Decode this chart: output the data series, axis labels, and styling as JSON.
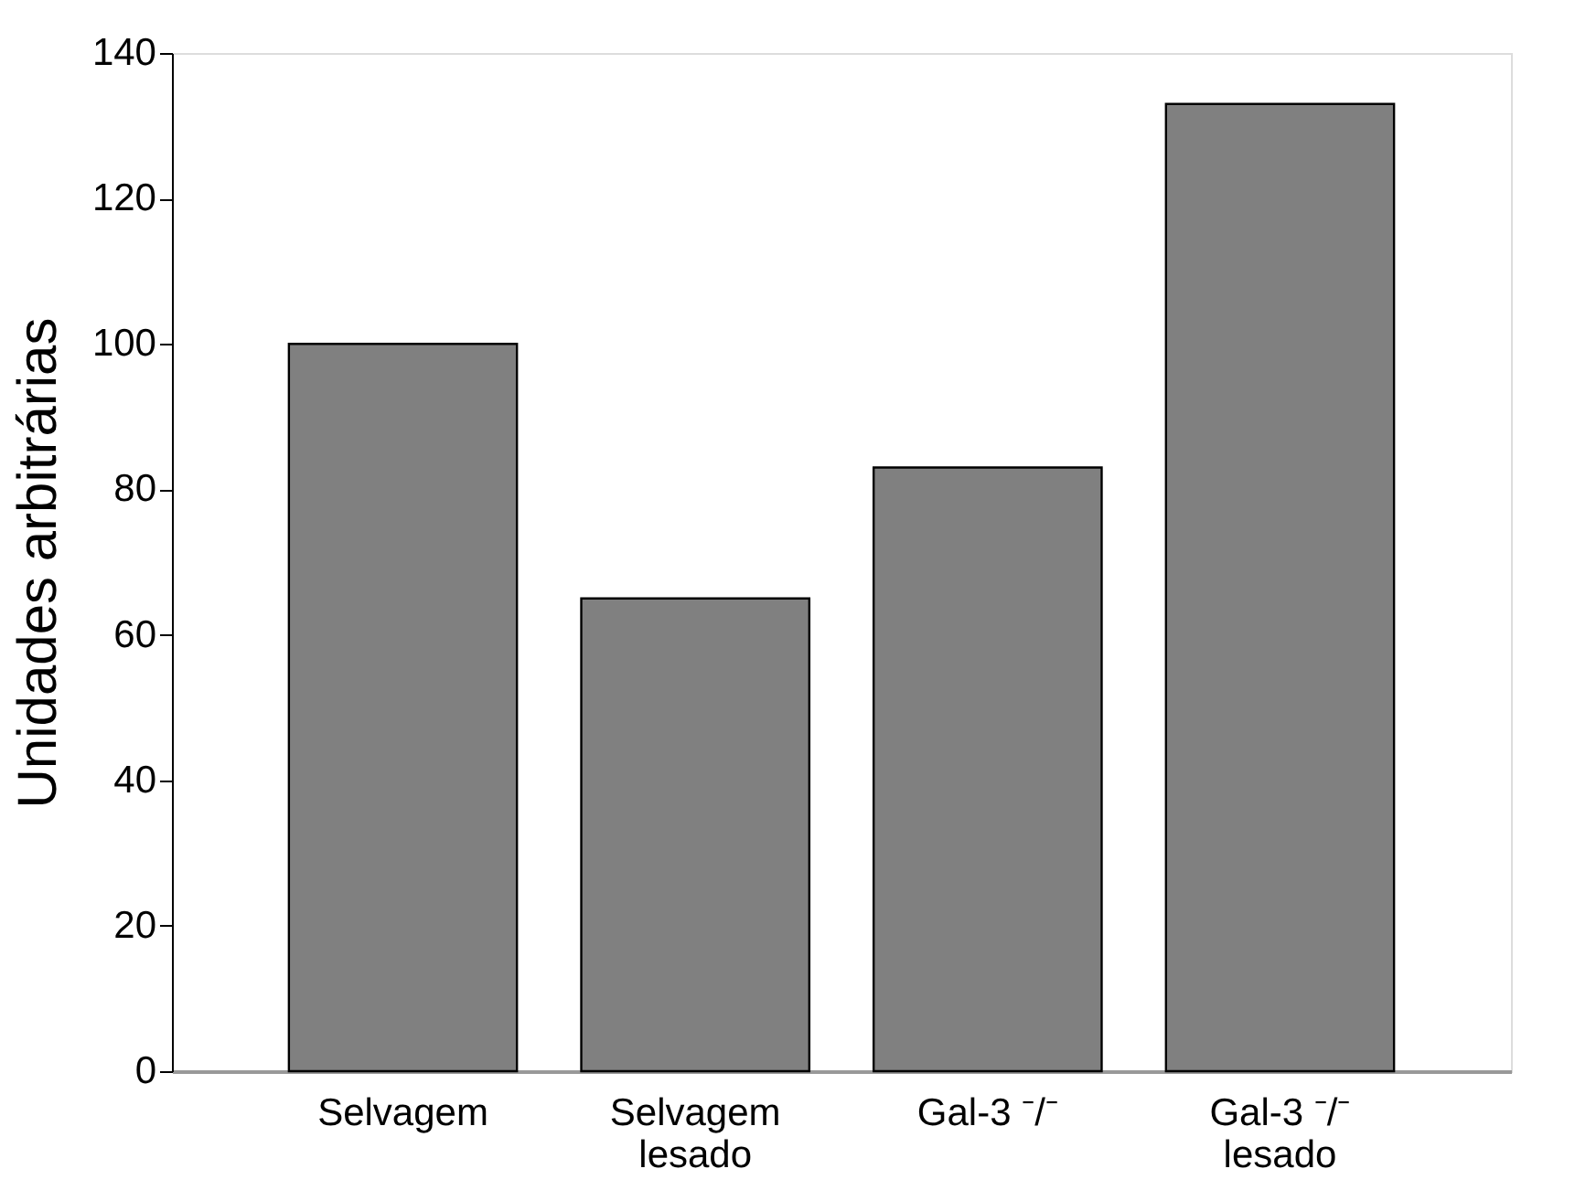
{
  "chart_data": {
    "type": "bar",
    "ylabel": "Unidades arbitrárias",
    "categories": [
      "Selvagem",
      "Selvagem\nlesado",
      "Gal-3 ⁻/⁻",
      "Gal-3 ⁻/⁻\nlesado"
    ],
    "values": [
      100,
      65,
      83,
      133
    ],
    "color": "#808080",
    "ylim": [
      0,
      140
    ],
    "yticks": [
      0,
      20,
      40,
      60,
      80,
      100,
      120,
      140
    ],
    "grid": false
  }
}
